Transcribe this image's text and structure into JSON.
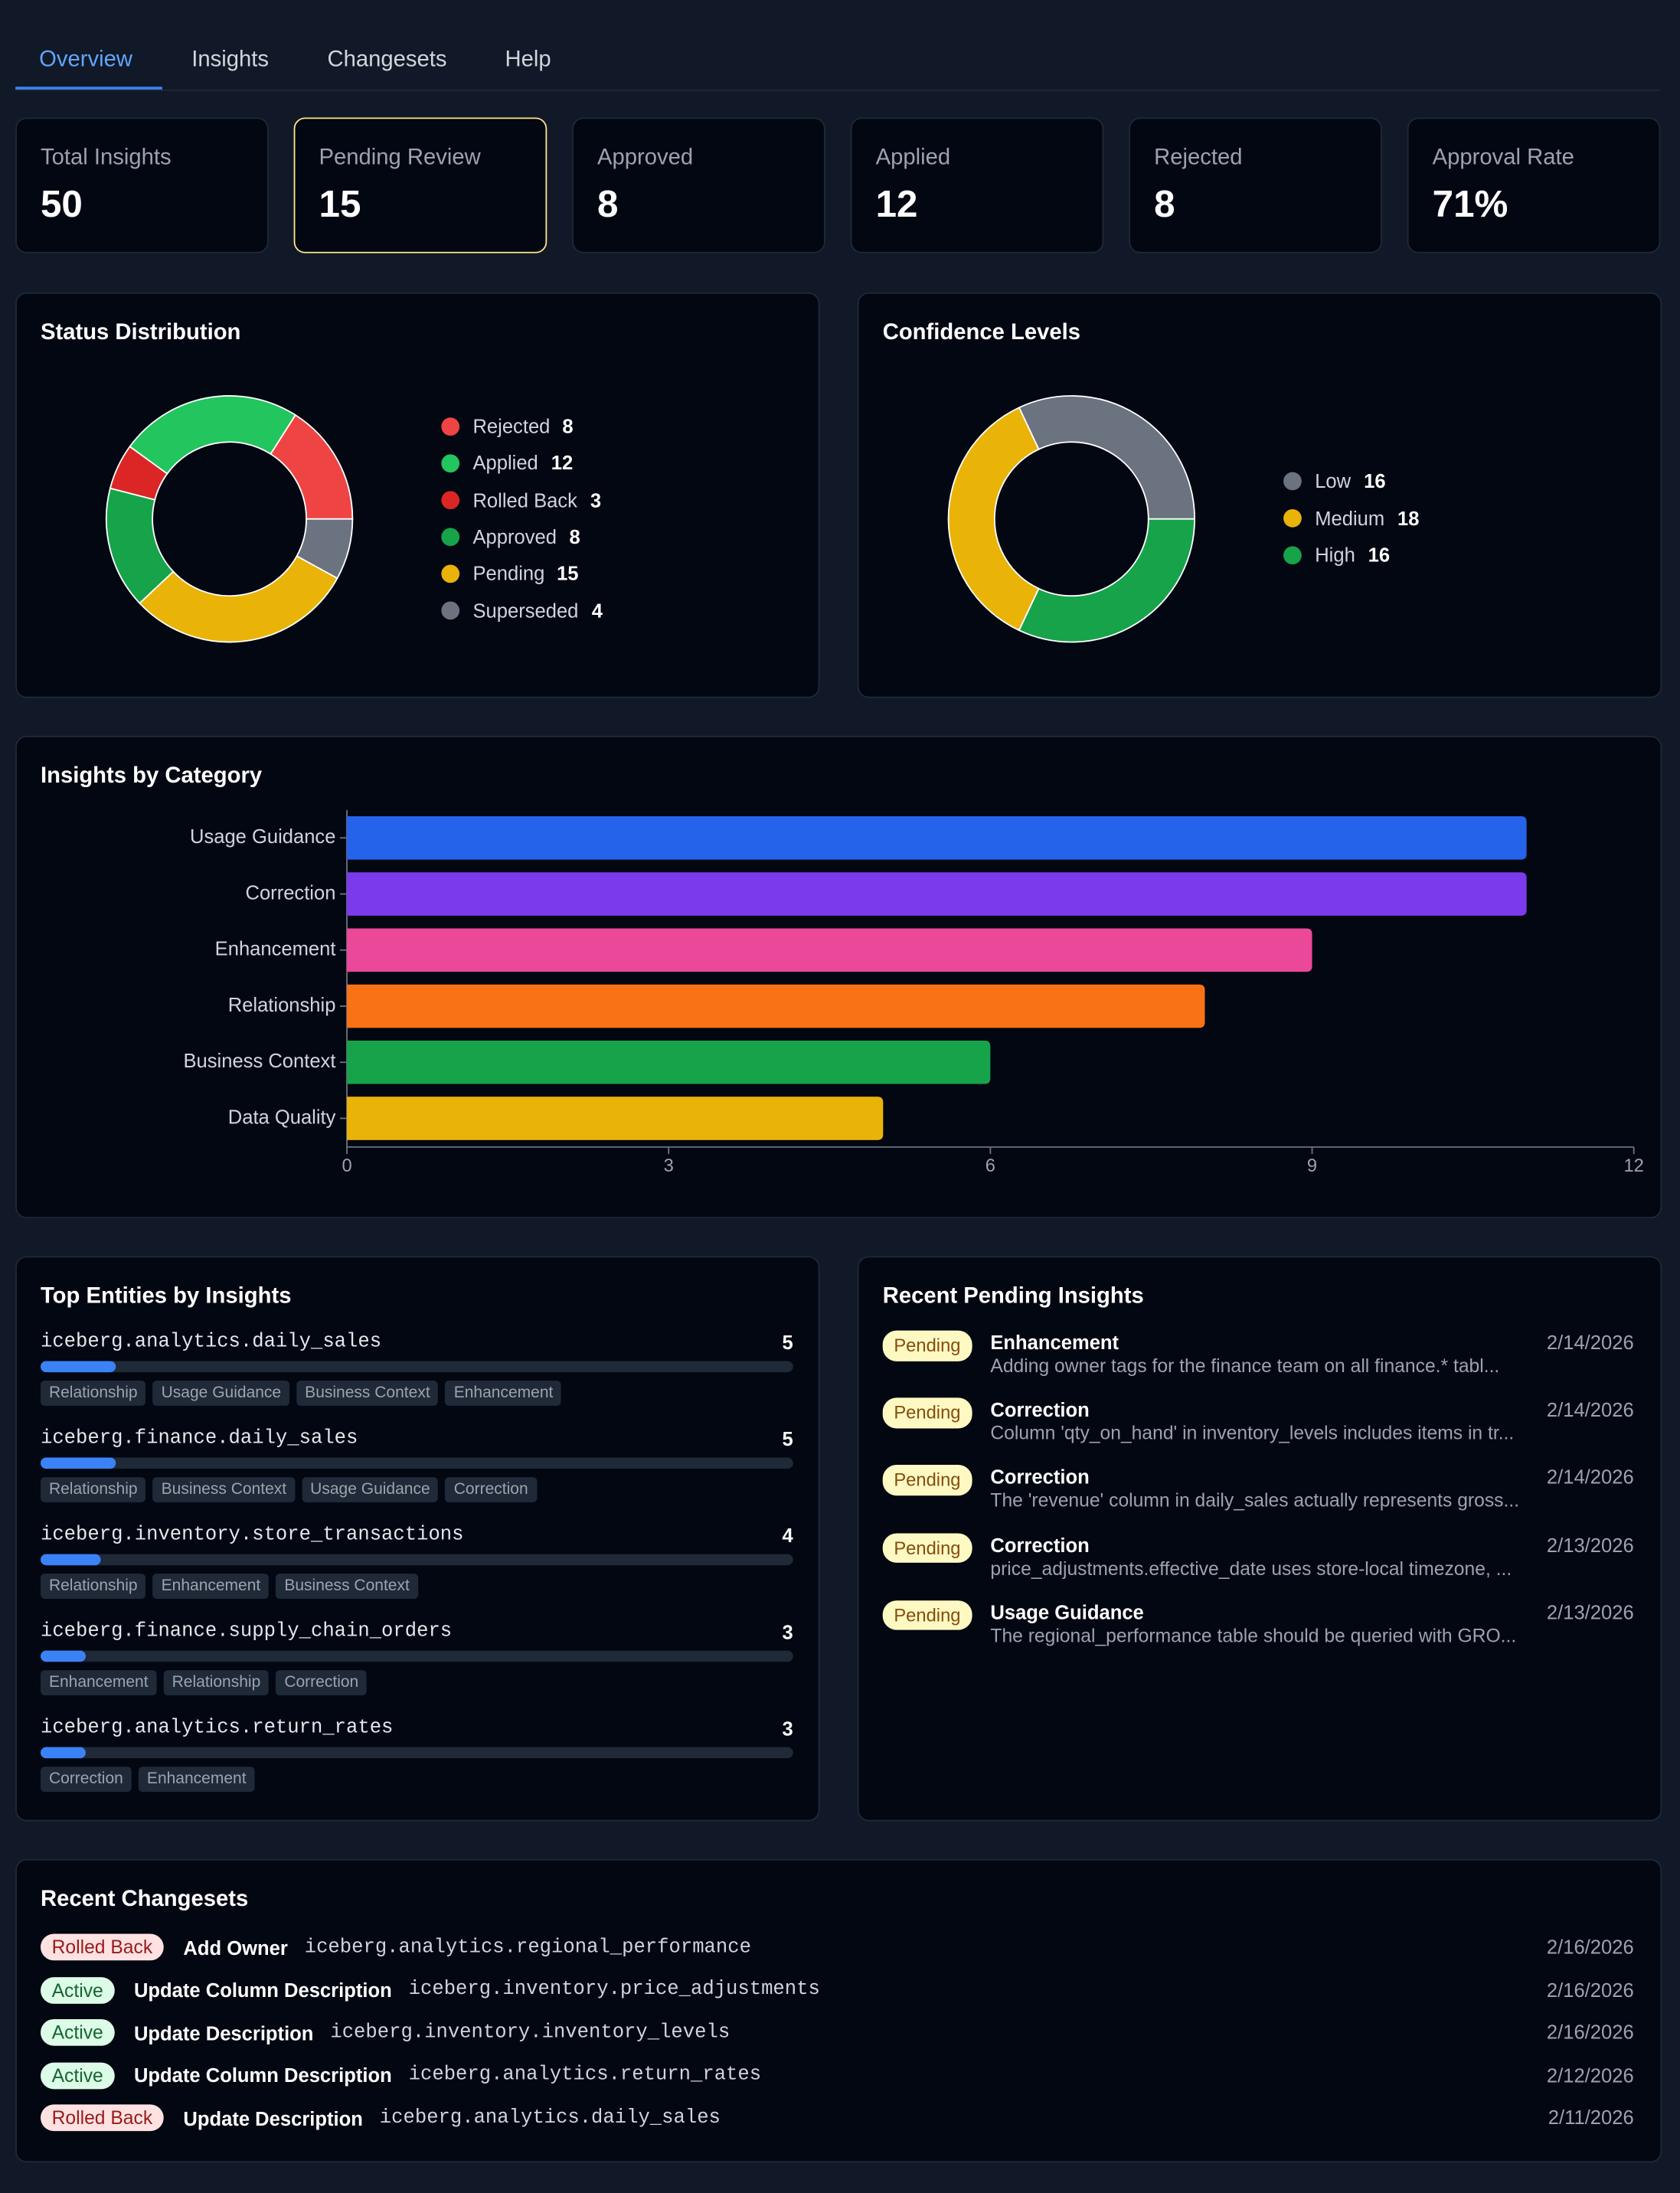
{
  "tabs": [
    "Overview",
    "Insights",
    "Changesets",
    "Help"
  ],
  "active_tab": 0,
  "stats": [
    {
      "label": "Total Insights",
      "value": 50
    },
    {
      "label": "Pending Review",
      "value": 15
    },
    {
      "label": "Approved",
      "value": 8
    },
    {
      "label": "Applied",
      "value": 12
    },
    {
      "label": "Rejected",
      "value": 8
    },
    {
      "label": "Approval Rate",
      "value": 71,
      "value_label": "71%"
    }
  ],
  "status_distribution": {
    "title": "Status Distribution",
    "type": "donut",
    "slices": [
      {
        "name": "Rejected",
        "value": 8,
        "color": "#ef4444"
      },
      {
        "name": "Applied",
        "value": 12,
        "color": "#22c55e"
      },
      {
        "name": "Rolled Back",
        "value": 3,
        "color": "#dc2626"
      },
      {
        "name": "Approved",
        "value": 8,
        "color": "#16a34a"
      },
      {
        "name": "Pending",
        "value": 15,
        "color": "#eab308"
      },
      {
        "name": "Superseded",
        "value": 4,
        "color": "#6b7280"
      }
    ]
  },
  "confidence_levels": {
    "title": "Confidence Levels",
    "type": "donut",
    "slices": [
      {
        "name": "Low",
        "value": 16,
        "color": "#6b7280"
      },
      {
        "name": "Medium",
        "value": 18,
        "color": "#eab308"
      },
      {
        "name": "High",
        "value": 16,
        "color": "#16a34a"
      }
    ]
  },
  "insights_by_category": {
    "title": "Insights by Category",
    "type": "bar",
    "orientation": "horizontal",
    "categories": [
      "Usage Guidance",
      "Correction",
      "Enhancement",
      "Relationship",
      "Business Context",
      "Data Quality"
    ],
    "values": [
      11,
      11,
      9,
      8,
      6,
      5
    ],
    "colors": [
      "#2563eb",
      "#7c3aed",
      "#ec4899",
      "#f97316",
      "#16a34a",
      "#eab308"
    ],
    "xlim": [
      0,
      12
    ],
    "xticks": [
      0,
      3,
      6,
      9,
      12
    ]
  },
  "top_entities": {
    "title": "Top Entities by Insights",
    "items": [
      {
        "name": "iceberg.analytics.daily_sales",
        "count": 5,
        "tags": [
          "Relationship",
          "Usage Guidance",
          "Business Context",
          "Enhancement"
        ]
      },
      {
        "name": "iceberg.finance.daily_sales",
        "count": 5,
        "tags": [
          "Relationship",
          "Business Context",
          "Usage Guidance",
          "Correction"
        ]
      },
      {
        "name": "iceberg.inventory.store_transactions",
        "count": 4,
        "tags": [
          "Relationship",
          "Enhancement",
          "Business Context"
        ]
      },
      {
        "name": "iceberg.finance.supply_chain_orders",
        "count": 3,
        "tags": [
          "Enhancement",
          "Relationship",
          "Correction"
        ]
      },
      {
        "name": "iceberg.analytics.return_rates",
        "count": 3,
        "tags": [
          "Correction",
          "Enhancement"
        ]
      }
    ]
  },
  "recent_pending": {
    "title": "Recent Pending Insights",
    "items": [
      {
        "status": "Pending",
        "category": "Enhancement",
        "text": "Adding owner tags for the finance team on all finance.* tabl...",
        "date": "2/14/2026"
      },
      {
        "status": "Pending",
        "category": "Correction",
        "text": "Column 'qty_on_hand' in inventory_levels includes items in tr...",
        "date": "2/14/2026"
      },
      {
        "status": "Pending",
        "category": "Correction",
        "text": "The 'revenue' column in daily_sales actually represents gross...",
        "date": "2/14/2026"
      },
      {
        "status": "Pending",
        "category": "Correction",
        "text": "price_adjustments.effective_date uses store-local timezone, ...",
        "date": "2/13/2026"
      },
      {
        "status": "Pending",
        "category": "Usage Guidance",
        "text": "The regional_performance table should be queried with GRO...",
        "date": "2/13/2026"
      }
    ]
  },
  "recent_changesets": {
    "title": "Recent Changesets",
    "items": [
      {
        "status": "Rolled Back",
        "colors": [
          "#fee2e2",
          "#991b1b"
        ],
        "action": "Add Owner",
        "entity": "iceberg.analytics.regional_performance",
        "date": "2/16/2026"
      },
      {
        "status": "Active",
        "colors": [
          "#dcfce7",
          "#166534"
        ],
        "action": "Update Column Description",
        "entity": "iceberg.inventory.price_adjustments",
        "date": "2/16/2026"
      },
      {
        "status": "Active",
        "colors": [
          "#dcfce7",
          "#166534"
        ],
        "action": "Update Description",
        "entity": "iceberg.inventory.inventory_levels",
        "date": "2/16/2026"
      },
      {
        "status": "Active",
        "colors": [
          "#dcfce7",
          "#166534"
        ],
        "action": "Update Column Description",
        "entity": "iceberg.analytics.return_rates",
        "date": "2/12/2026"
      },
      {
        "status": "Rolled Back",
        "colors": [
          "#fee2e2",
          "#991b1b"
        ],
        "action": "Update Description",
        "entity": "iceberg.analytics.daily_sales",
        "date": "2/11/2026"
      }
    ]
  }
}
